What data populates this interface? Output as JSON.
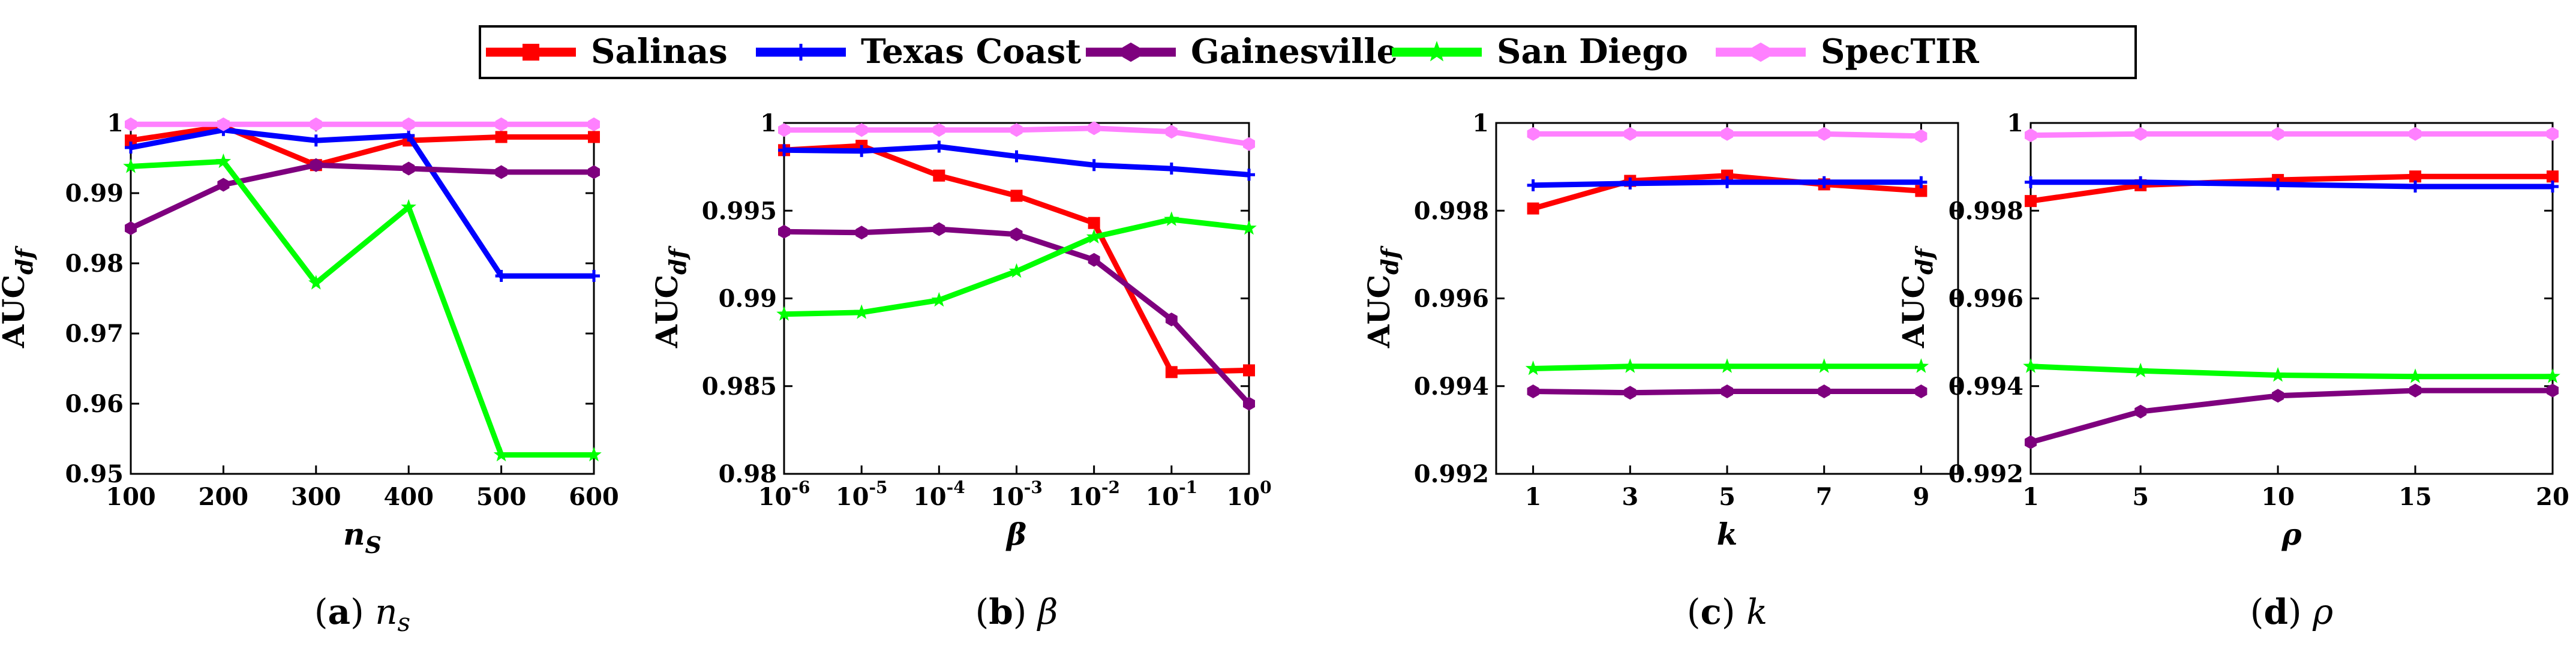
{
  "legend": {
    "entries": [
      {
        "name": "Salinas",
        "color": "#ff0000",
        "marker": "square"
      },
      {
        "name": "Texas Coast",
        "color": "#0000ff",
        "marker": "plus"
      },
      {
        "name": "Gainesville",
        "color": "#7e007e",
        "marker": "hexagon"
      },
      {
        "name": "San Diego",
        "color": "#00ff00",
        "marker": "star"
      },
      {
        "name": "SpecTIR",
        "color": "#ff80ff",
        "marker": "hexagon"
      }
    ]
  },
  "chart_data": [
    {
      "type": "line",
      "caption_letter": "a",
      "caption_sym": "n",
      "caption_sub": "s",
      "ylabel": "AUC",
      "ylabel_sub": "df",
      "xlabel": "n",
      "xlabel_sub": "S",
      "x_ticks": [
        "100",
        "200",
        "300",
        "400",
        "500",
        "600"
      ],
      "ylim": [
        0.95,
        1.0
      ],
      "y_ticks": [
        "0.95",
        "0.96",
        "0.97",
        "0.98",
        "0.99",
        "1"
      ],
      "y_tick_values": [
        0.95,
        0.96,
        0.97,
        0.98,
        0.99,
        1.0
      ],
      "series": [
        {
          "name": "Salinas",
          "values": [
            0.9975,
            0.9995,
            0.994,
            0.9975,
            0.998,
            0.998
          ]
        },
        {
          "name": "Texas Coast",
          "values": [
            0.9965,
            0.999,
            0.9975,
            0.9982,
            0.9782,
            0.9782
          ]
        },
        {
          "name": "Gainesville",
          "values": [
            0.985,
            0.9912,
            0.994,
            0.9935,
            0.993,
            0.993
          ]
        },
        {
          "name": "San Diego",
          "values": [
            0.9938,
            0.9945,
            0.9772,
            0.988,
            0.9527,
            0.9527
          ]
        },
        {
          "name": "SpecTIR",
          "values": [
            0.9998,
            0.9998,
            0.9998,
            0.9998,
            0.9998,
            0.9998
          ]
        }
      ]
    },
    {
      "type": "line",
      "caption_letter": "b",
      "caption_sym": "β",
      "caption_sub": "",
      "ylabel": "AUC",
      "ylabel_sub": "df",
      "xlabel": "β",
      "xlabel_sub": "",
      "x_tick_bases": [
        "10",
        "10",
        "10",
        "10",
        "10",
        "10",
        "10"
      ],
      "x_tick_exps": [
        "-6",
        "-5",
        "-4",
        "-3",
        "-2",
        "-1",
        "0"
      ],
      "ylim": [
        0.98,
        1.0
      ],
      "y_ticks": [
        "0.98",
        "0.985",
        "0.99",
        "0.995",
        "1"
      ],
      "y_tick_values": [
        0.98,
        0.985,
        0.99,
        0.995,
        1.0
      ],
      "series": [
        {
          "name": "Salinas",
          "values": [
            0.99845,
            0.9987,
            0.997,
            0.99585,
            0.9943,
            0.9858,
            0.9859
          ]
        },
        {
          "name": "Texas Coast",
          "values": [
            0.99845,
            0.9984,
            0.99865,
            0.9981,
            0.9976,
            0.9974,
            0.99705
          ]
        },
        {
          "name": "Gainesville",
          "values": [
            0.9938,
            0.99375,
            0.99395,
            0.99365,
            0.9922,
            0.9888,
            0.984
          ]
        },
        {
          "name": "San Diego",
          "values": [
            0.9891,
            0.9892,
            0.9899,
            0.99155,
            0.9935,
            0.9945,
            0.994
          ]
        },
        {
          "name": "SpecTIR",
          "values": [
            0.9996,
            0.9996,
            0.9996,
            0.9996,
            0.9997,
            0.9995,
            0.9988
          ]
        }
      ]
    },
    {
      "type": "line",
      "caption_letter": "c",
      "caption_sym": "k",
      "caption_sub": "",
      "ylabel": "AUC",
      "ylabel_sub": "df",
      "xlabel": "k",
      "xlabel_sub": "",
      "x_ticks": [
        "1",
        "3",
        "5",
        "7",
        "9"
      ],
      "ylim": [
        0.992,
        1.0
      ],
      "y_ticks": [
        "0.992",
        "0.994",
        "0.996",
        "0.998",
        "1"
      ],
      "y_tick_values": [
        0.992,
        0.994,
        0.996,
        0.998,
        1.0
      ],
      "series": [
        {
          "name": "Salinas",
          "values": [
            0.99805,
            0.99868,
            0.9988,
            0.9986,
            0.99845
          ]
        },
        {
          "name": "Texas Coast",
          "values": [
            0.99858,
            0.99862,
            0.99865,
            0.99865,
            0.99865
          ]
        },
        {
          "name": "Gainesville",
          "values": [
            0.99388,
            0.99385,
            0.99388,
            0.99388,
            0.99388
          ]
        },
        {
          "name": "San Diego",
          "values": [
            0.9944,
            0.99445,
            0.99445,
            0.99445,
            0.99445
          ]
        },
        {
          "name": "SpecTIR",
          "values": [
            0.99975,
            0.99975,
            0.99975,
            0.99975,
            0.9997
          ]
        }
      ]
    },
    {
      "type": "line",
      "caption_letter": "d",
      "caption_sym": "ρ",
      "caption_sub": "",
      "ylabel": "AUC",
      "ylabel_sub": "df",
      "xlabel": "ρ",
      "xlabel_sub": "",
      "x_ticks": [
        "1",
        "5",
        "10",
        "15",
        "20"
      ],
      "ylim": [
        0.992,
        1.0
      ],
      "y_ticks": [
        "0.992",
        "0.994",
        "0.996",
        "0.998",
        "1"
      ],
      "y_tick_values": [
        0.992,
        0.994,
        0.996,
        0.998,
        1.0
      ],
      "series": [
        {
          "name": "Salinas",
          "values": [
            0.99822,
            0.99858,
            0.9987,
            0.99878,
            0.99878
          ]
        },
        {
          "name": "Texas Coast",
          "values": [
            0.99865,
            0.99865,
            0.9986,
            0.99855,
            0.99855
          ]
        },
        {
          "name": "Gainesville",
          "values": [
            0.99272,
            0.99342,
            0.99378,
            0.9939,
            0.9939
          ]
        },
        {
          "name": "San Diego",
          "values": [
            0.99445,
            0.99435,
            0.99425,
            0.99422,
            0.99422
          ]
        },
        {
          "name": "SpecTIR",
          "values": [
            0.99972,
            0.99975,
            0.99975,
            0.99975,
            0.99975
          ]
        }
      ]
    }
  ]
}
